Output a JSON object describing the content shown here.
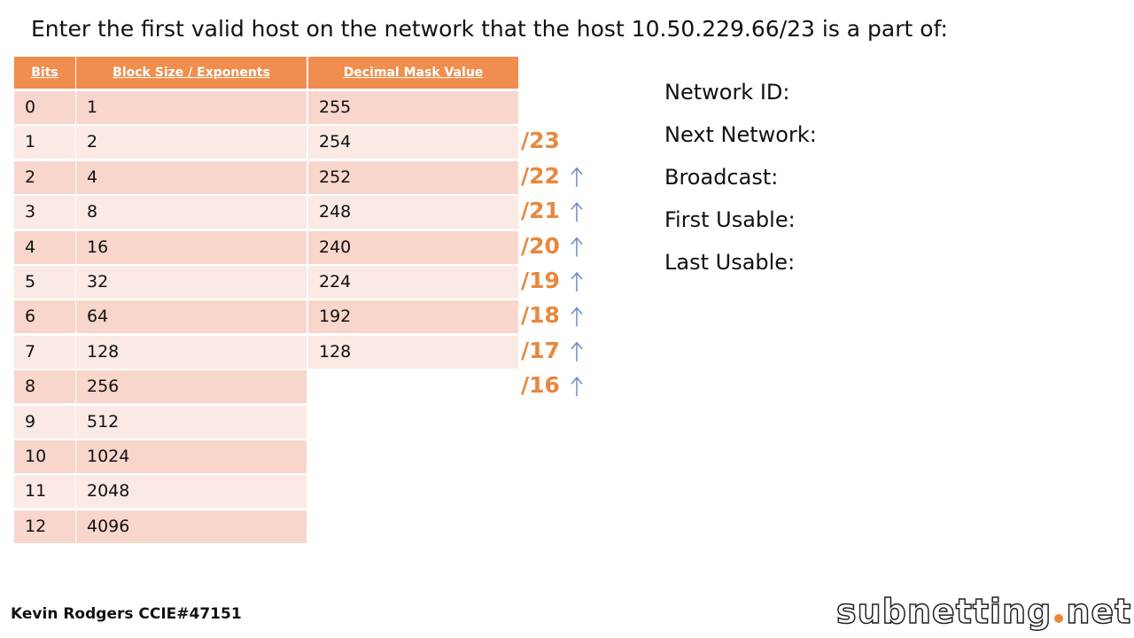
{
  "title": "Enter the first valid host on the network that the host 10.50.229.66/23 is a part of:",
  "table": {
    "headers": [
      "Bits",
      "Block Size / Exponents",
      "Decimal Mask Value"
    ],
    "rows": [
      [
        "0",
        "1",
        "255"
      ],
      [
        "1",
        "2",
        "254"
      ],
      [
        "2",
        "4",
        "252"
      ],
      [
        "3",
        "8",
        "248"
      ],
      [
        "4",
        "16",
        "240"
      ],
      [
        "5",
        "32",
        "224"
      ],
      [
        "6",
        "64",
        "192"
      ],
      [
        "7",
        "128",
        "128"
      ],
      [
        "8",
        "256"
      ],
      [
        "9",
        "512"
      ],
      [
        "10",
        "1024"
      ],
      [
        "11",
        "2048"
      ],
      [
        "12",
        "4096"
      ]
    ]
  },
  "prefixes": [
    "/23",
    "/22",
    "/21",
    "/20",
    "/19",
    "/18",
    "/17",
    "/16"
  ],
  "fields": [
    "Network ID:",
    "Next Network:",
    "Broadcast:",
    "First Usable:",
    "Last Usable:"
  ],
  "footer": {
    "author": "Kevin Rodgers CCIE#47151",
    "logo": {
      "name": "subnetting",
      "tld": "net"
    }
  }
}
